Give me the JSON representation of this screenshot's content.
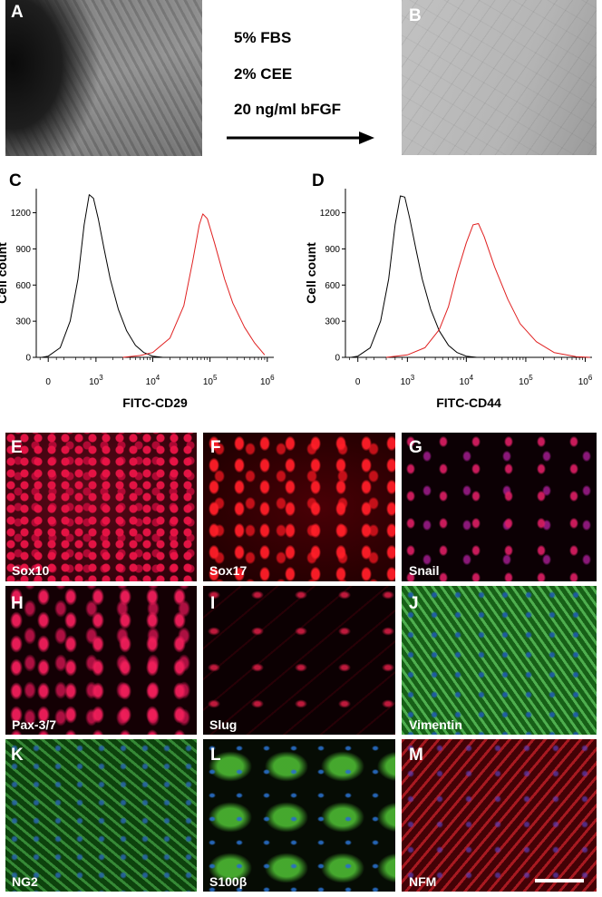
{
  "panels_top": [
    {
      "label": "A"
    },
    {
      "label": "B"
    }
  ],
  "conditions": [
    "5% FBS",
    "2% CEE",
    "20 ng/ml bFGF"
  ],
  "chart_data": [
    {
      "type": "line",
      "label": "C",
      "xlabel": "FITC-CD29",
      "ylabel": "Cell count",
      "xscale": "biexponential",
      "ylim": [
        0,
        1400
      ],
      "yticks": [
        "0",
        "300",
        "600",
        "900",
        "1200"
      ],
      "xticks": [
        {
          "base": "0",
          "exp": ""
        },
        {
          "base": "10",
          "exp": "3"
        },
        {
          "base": "10",
          "exp": "4"
        },
        {
          "base": "10",
          "exp": "5"
        },
        {
          "base": "10",
          "exp": "6"
        }
      ],
      "series": [
        {
          "color": "#000000",
          "x": [
            -80,
            0,
            150,
            300,
            450,
            600,
            750,
            900,
            1100,
            1400,
            1800,
            2500,
            3500,
            5000,
            7000,
            10000,
            15000
          ],
          "y": [
            0,
            10,
            80,
            300,
            650,
            1100,
            1350,
            1320,
            1150,
            900,
            650,
            400,
            220,
            100,
            40,
            10,
            0
          ]
        },
        {
          "color": "#e02020",
          "x": [
            3000,
            6000,
            10000,
            20000,
            35000,
            50000,
            65000,
            75000,
            90000,
            120000,
            180000,
            250000,
            400000,
            600000,
            900000
          ],
          "y": [
            0,
            15,
            40,
            160,
            430,
            800,
            1100,
            1190,
            1150,
            950,
            650,
            450,
            250,
            120,
            20
          ]
        }
      ]
    },
    {
      "type": "line",
      "label": "D",
      "xlabel": "FITC-CD44",
      "ylabel": "Cell count",
      "xscale": "biexponential",
      "ylim": [
        0,
        1400
      ],
      "yticks": [
        "0",
        "300",
        "600",
        "900",
        "1200"
      ],
      "xticks": [
        {
          "base": "0",
          "exp": ""
        },
        {
          "base": "10",
          "exp": "3"
        },
        {
          "base": "10",
          "exp": "4"
        },
        {
          "base": "10",
          "exp": "5"
        },
        {
          "base": "10",
          "exp": "6"
        }
      ],
      "series": [
        {
          "color": "#000000",
          "x": [
            -80,
            0,
            150,
            300,
            450,
            600,
            750,
            900,
            1100,
            1400,
            1800,
            2500,
            3500,
            5000,
            7000,
            10000,
            15000
          ],
          "y": [
            0,
            10,
            80,
            300,
            650,
            1100,
            1340,
            1330,
            1150,
            900,
            650,
            400,
            220,
            100,
            40,
            10,
            0
          ]
        },
        {
          "color": "#e02020",
          "x": [
            400,
            1000,
            2000,
            3500,
            5000,
            7000,
            10000,
            13000,
            16000,
            20000,
            30000,
            50000,
            80000,
            150000,
            300000,
            700000,
            1200000
          ],
          "y": [
            0,
            20,
            80,
            230,
            420,
            700,
            950,
            1100,
            1110,
            1000,
            750,
            480,
            280,
            130,
            40,
            5,
            0
          ]
        }
      ]
    }
  ],
  "micrographs": [
    {
      "letter": "E",
      "stain": "Sox10"
    },
    {
      "letter": "F",
      "stain": "Sox17"
    },
    {
      "letter": "G",
      "stain": "Snail"
    },
    {
      "letter": "H",
      "stain": "Pax-3/7"
    },
    {
      "letter": "I",
      "stain": "Slug"
    },
    {
      "letter": "J",
      "stain": "Vimentin"
    },
    {
      "letter": "K",
      "stain": "NG2"
    },
    {
      "letter": "L",
      "stain": "S100β"
    },
    {
      "letter": "M",
      "stain": "NFM"
    }
  ]
}
